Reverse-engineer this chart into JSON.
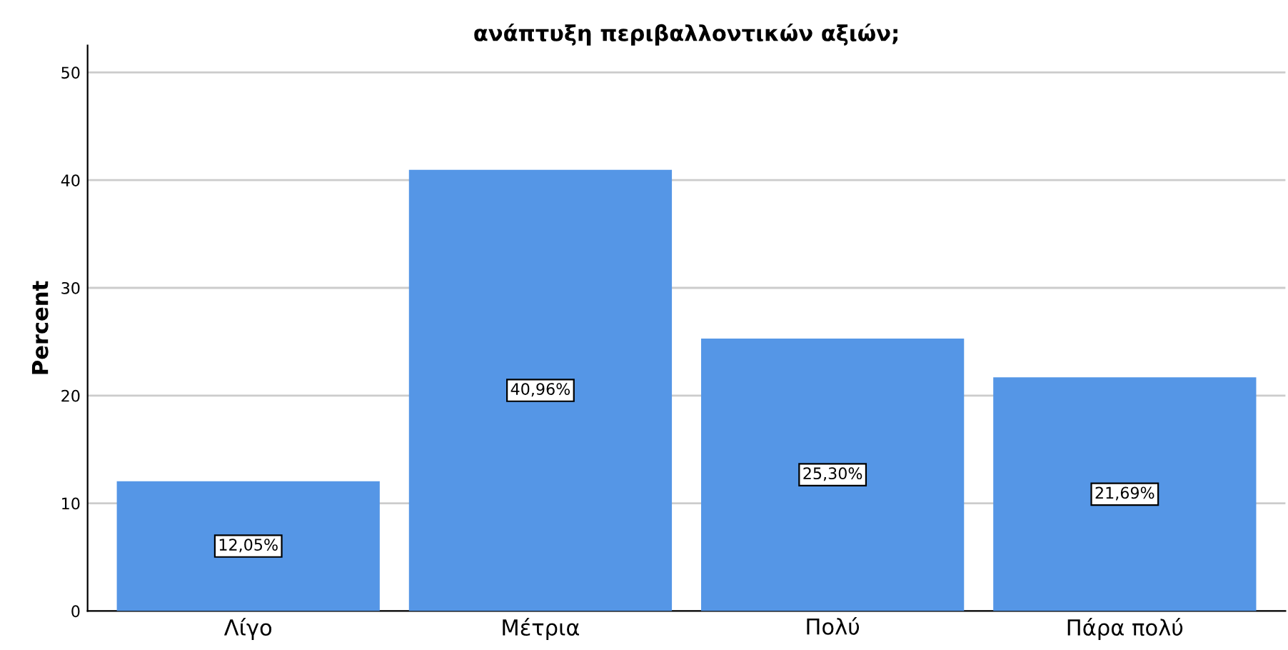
{
  "chart_data": {
    "type": "bar",
    "title": "ανάπτυξη περιβαλλοντικών αξιών;",
    "ylabel": "Percent",
    "categories": [
      "Λίγο",
      "Μέτρια",
      "Πολύ",
      "Πάρα πολύ"
    ],
    "values": [
      12.05,
      40.96,
      25.3,
      21.69
    ],
    "value_labels": [
      "12,05%",
      "40,96%",
      "25,30%",
      "21,69%"
    ],
    "color": "#5596e6",
    "ylim": [
      0,
      52.5
    ],
    "yticks": [
      0,
      10,
      20,
      30,
      40,
      50
    ],
    "grid": "y"
  }
}
